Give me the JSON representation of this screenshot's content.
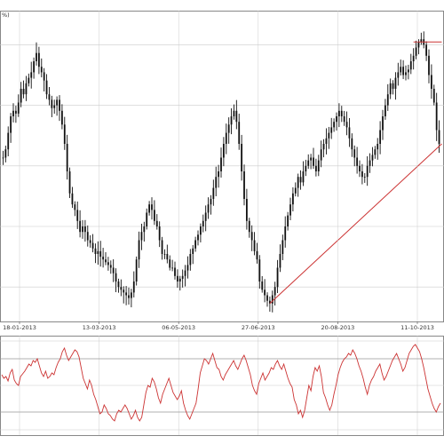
{
  "chart_data": [
    {
      "panel": "price",
      "type": "candlestick",
      "title_fragment": "%)",
      "x_tick_labels": [
        "18-01-2013",
        "13-03-2013",
        "06-05-2013",
        "27-06-2013",
        "20-08-2013",
        "11-10-2013"
      ],
      "y_range": [
        0,
        100
      ],
      "grid": true,
      "colors": {
        "candle": "#111111",
        "trendline": "#cc3333",
        "grid": "#cccccc",
        "frame": "#888888"
      },
      "close": [
        55,
        58,
        64,
        70,
        72,
        71,
        75,
        80,
        78,
        82,
        84,
        86,
        90,
        93,
        88,
        86,
        83,
        78,
        76,
        73,
        74,
        76,
        72,
        67,
        60,
        50,
        42,
        38,
        36,
        32,
        28,
        30,
        28,
        25,
        24,
        22,
        20,
        21,
        19,
        18,
        17,
        16,
        15,
        13,
        10,
        8,
        7,
        6,
        5,
        4,
        6,
        10,
        18,
        25,
        28,
        30,
        35,
        38,
        36,
        32,
        30,
        25,
        20,
        20,
        18,
        15,
        15,
        12,
        10,
        11,
        12,
        14,
        16,
        20,
        22,
        25,
        27,
        30,
        32,
        35,
        38,
        40,
        44,
        48,
        50,
        55,
        60,
        64,
        67,
        70,
        72,
        68,
        60,
        50,
        40,
        32,
        28,
        25,
        21,
        18,
        10,
        7,
        5,
        3,
        2,
        5,
        8,
        15,
        20,
        25,
        30,
        34,
        38,
        42,
        44,
        48,
        46,
        50,
        52,
        54,
        55,
        52,
        50,
        54,
        58,
        60,
        62,
        64,
        66,
        68,
        70,
        72,
        70,
        68,
        66,
        62,
        58,
        55,
        52,
        50,
        48,
        48,
        52,
        54,
        56,
        58,
        60,
        65,
        70,
        74,
        78,
        82,
        80,
        84,
        86,
        88,
        85,
        86,
        87,
        90,
        92,
        95,
        97,
        98,
        96,
        92,
        85,
        80,
        75,
        65,
        60
      ],
      "trendlines": [
        {
          "from": {
            "index": 104,
            "value": 2
          },
          "to": {
            "index": 171,
            "value": 60
          }
        },
        {
          "from": {
            "index": 160,
            "value": 97
          },
          "to": {
            "index": 171,
            "value": 97
          }
        }
      ]
    },
    {
      "panel": "oscillator",
      "type": "line",
      "series": [
        {
          "color": "#cc3333",
          "values": [
            62,
            58,
            60,
            55,
            64,
            68,
            56,
            52,
            50,
            60,
            63,
            66,
            70,
            74,
            72,
            78,
            76,
            80,
            72,
            64,
            60,
            66,
            58,
            60,
            64,
            62,
            70,
            76,
            80,
            88,
            92,
            84,
            78,
            82,
            86,
            90,
            88,
            82,
            70,
            58,
            52,
            46,
            56,
            50,
            40,
            34,
            26,
            18,
            20,
            28,
            24,
            18,
            16,
            12,
            10,
            18,
            22,
            20,
            24,
            28,
            24,
            18,
            12,
            16,
            22,
            14,
            10,
            14,
            28,
            42,
            50,
            48,
            58,
            54,
            46,
            36,
            30,
            40,
            46,
            52,
            58,
            50,
            42,
            38,
            34,
            38,
            44,
            30,
            22,
            16,
            12,
            18,
            24,
            30,
            46,
            64,
            72,
            80,
            78,
            74,
            80,
            86,
            78,
            70,
            68,
            60,
            56,
            62,
            66,
            70,
            74,
            78,
            72,
            68,
            74,
            80,
            84,
            78,
            70,
            62,
            50,
            44,
            40,
            52,
            58,
            64,
            56,
            60,
            64,
            70,
            68,
            74,
            78,
            72,
            68,
            74,
            66,
            58,
            52,
            48,
            34,
            28,
            18,
            22,
            14,
            22,
            36,
            50,
            44,
            60,
            70,
            66,
            72,
            60,
            42,
            36,
            28,
            22,
            28,
            40,
            50,
            62,
            70,
            76,
            80,
            82,
            86,
            84,
            90,
            86,
            80,
            72,
            66,
            58,
            48,
            40,
            50,
            56,
            60,
            66,
            70,
            74,
            64,
            56,
            60,
            66,
            72,
            78,
            82,
            86,
            80,
            74,
            66,
            70,
            78,
            86,
            90,
            94,
            96,
            92,
            88,
            80,
            70,
            58,
            46,
            38,
            30,
            24,
            20,
            26,
            30
          ]
        }
      ],
      "y_range": [
        0,
        100
      ],
      "reference_levels": [
        80,
        20
      ],
      "grid": true
    }
  ]
}
